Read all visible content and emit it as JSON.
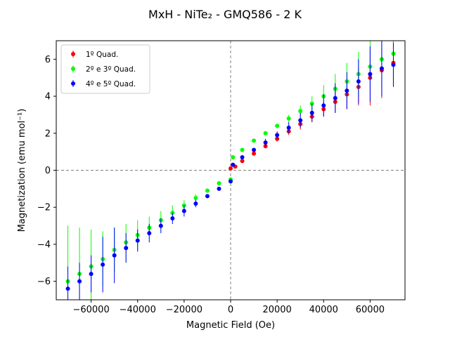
{
  "chart_data": {
    "type": "scatter",
    "title": "MxH - NiTe₂ - GMQ586 - 2 K",
    "xlabel": "Magnetic Field (Oe)",
    "ylabel": "Magnetization (emu mol⁻¹)",
    "xlim": [
      -75000,
      75000
    ],
    "ylim": [
      -7,
      7
    ],
    "x_ticks": [
      -60000,
      -40000,
      -20000,
      0,
      20000,
      40000,
      60000
    ],
    "y_ticks": [
      -6,
      -4,
      -2,
      0,
      2,
      4,
      6
    ],
    "reference_lines": {
      "x": 0,
      "y": 0,
      "style": "dashed",
      "color": "#808080"
    },
    "legend_position": "upper-left",
    "grid": false,
    "series": [
      {
        "name": "1º Quad.",
        "color": "#ff0000",
        "x": [
          0,
          2000,
          5000,
          10000,
          15000,
          20000,
          25000,
          30000,
          35000,
          40000,
          45000,
          50000,
          55000,
          60000,
          65000,
          70000
        ],
        "y": [
          0.1,
          0.2,
          0.5,
          0.9,
          1.3,
          1.7,
          2.1,
          2.5,
          2.9,
          3.3,
          3.7,
          4.1,
          4.5,
          5.0,
          5.4,
          5.8
        ],
        "yerr": [
          0.05,
          0.05,
          0.08,
          0.1,
          0.1,
          0.15,
          0.2,
          0.3,
          0.3,
          0.4,
          0.6,
          0.8,
          1.0,
          1.5,
          1.5,
          1.2
        ]
      },
      {
        "name": "2º e 3º Quad.",
        "color": "#00ff00",
        "x": [
          70000,
          65000,
          60000,
          55000,
          50000,
          45000,
          40000,
          35000,
          30000,
          25000,
          20000,
          15000,
          10000,
          5000,
          1000,
          0,
          -5000,
          -10000,
          -15000,
          -20000,
          -25000,
          -30000,
          -35000,
          -40000,
          -45000,
          -50000,
          -55000,
          -60000,
          -65000,
          -70000
        ],
        "y": [
          6.3,
          6.0,
          5.6,
          5.2,
          4.8,
          4.4,
          4.0,
          3.6,
          3.2,
          2.8,
          2.4,
          2.0,
          1.6,
          1.1,
          0.7,
          -0.5,
          -0.7,
          -1.1,
          -1.5,
          -1.9,
          -2.3,
          -2.7,
          -3.1,
          -3.5,
          -3.9,
          -4.3,
          -4.8,
          -5.2,
          -5.6,
          -6.0
        ],
        "yerr": [
          1.5,
          1.5,
          1.4,
          1.2,
          1.0,
          0.8,
          0.6,
          0.4,
          0.3,
          0.2,
          0.1,
          0.1,
          0.1,
          0.1,
          0.1,
          0.1,
          0.1,
          0.1,
          0.2,
          0.3,
          0.4,
          0.5,
          0.6,
          0.8,
          1.0,
          1.2,
          1.5,
          2.0,
          2.5,
          3.0
        ]
      },
      {
        "name": "4º e 5º Quad.",
        "color": "#0000ff",
        "x": [
          -70000,
          -65000,
          -60000,
          -55000,
          -50000,
          -45000,
          -40000,
          -35000,
          -30000,
          -25000,
          -20000,
          -15000,
          -10000,
          -5000,
          0,
          1000,
          5000,
          10000,
          15000,
          20000,
          25000,
          30000,
          35000,
          40000,
          45000,
          50000,
          55000,
          60000,
          65000,
          70000
        ],
        "y": [
          -6.4,
          -6.0,
          -5.6,
          -5.1,
          -4.6,
          -4.2,
          -3.8,
          -3.4,
          -3.0,
          -2.6,
          -2.2,
          -1.8,
          -1.4,
          -1.0,
          -0.6,
          0.3,
          0.7,
          1.1,
          1.5,
          1.9,
          2.3,
          2.7,
          3.1,
          3.5,
          3.9,
          4.3,
          4.8,
          5.2,
          5.5,
          5.7
        ],
        "yerr": [
          1.2,
          1.0,
          1.0,
          1.5,
          1.5,
          0.8,
          0.6,
          0.5,
          0.4,
          0.3,
          0.3,
          0.2,
          0.1,
          0.1,
          0.1,
          0.1,
          0.1,
          0.1,
          0.2,
          0.2,
          0.3,
          0.4,
          0.5,
          0.6,
          0.8,
          1.0,
          1.2,
          1.5,
          1.5,
          1.2
        ]
      }
    ]
  }
}
